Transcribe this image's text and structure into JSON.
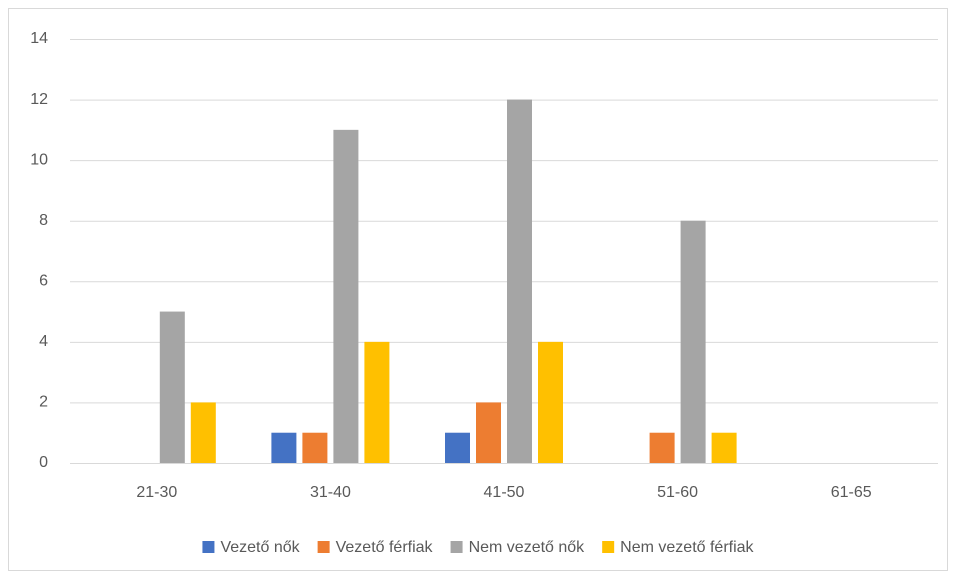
{
  "chart_data": {
    "type": "bar",
    "categories": [
      "21-30",
      "31-40",
      "41-50",
      "51-60",
      "61-65"
    ],
    "series": [
      {
        "name": "Vezető nők",
        "color": "#4472c4",
        "values": [
          0,
          1,
          1,
          0,
          0
        ]
      },
      {
        "name": "Vezető férfiak",
        "color": "#ed7d31",
        "values": [
          0,
          1,
          2,
          1,
          0
        ]
      },
      {
        "name": "Nem vezető nők",
        "color": "#a5a5a5",
        "values": [
          5,
          11,
          12,
          8,
          0
        ]
      },
      {
        "name": "Nem vezető férfiak",
        "color": "#ffc000",
        "values": [
          2,
          4,
          4,
          1,
          0
        ]
      }
    ],
    "ylim": [
      0,
      14
    ],
    "yticks": [
      0,
      2,
      4,
      6,
      8,
      10,
      12,
      14
    ],
    "grid": true,
    "legend": "bottom"
  }
}
